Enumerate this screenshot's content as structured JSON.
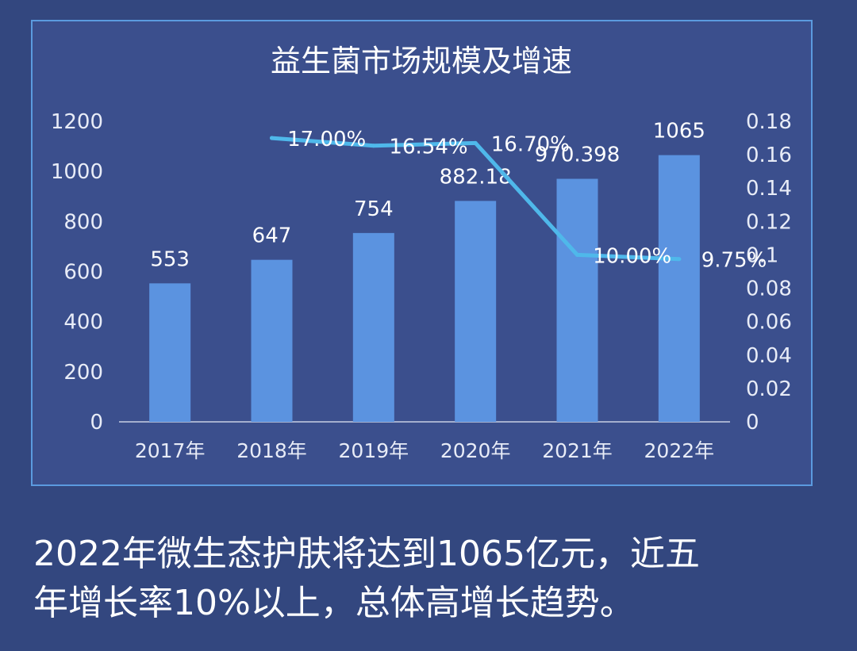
{
  "colors": {
    "background": "#33477f",
    "panel": "#3b4f8d",
    "panel_border": "#5b9bdf",
    "bar": "#5b93e0",
    "line": "#4fb8ea",
    "text": "#ffffff",
    "axis_text": "#e8ecf7",
    "axis_line": "#c8cfe4"
  },
  "chart_data": {
    "type": "bar",
    "title": "益生菌市场规模及增速",
    "categories": [
      "2017年",
      "2018年",
      "2019年",
      "2020年",
      "2021年",
      "2022年"
    ],
    "series": [
      {
        "type": "bar",
        "axis": "left",
        "values": [
          553,
          647,
          754,
          882.18,
          970.398,
          1065
        ],
        "data_labels": [
          "553",
          "647",
          "754",
          "882.18",
          "970.398",
          "1065"
        ]
      },
      {
        "type": "line",
        "axis": "right",
        "values": [
          null,
          0.17,
          0.1654,
          0.167,
          0.1,
          0.0975
        ],
        "data_labels": [
          "",
          "17.00%",
          "16.54%",
          "16.70%",
          "10.00%",
          "9.75%"
        ]
      }
    ],
    "y_left": {
      "ylim": [
        0,
        1200
      ],
      "ticks": [
        "0",
        "200",
        "400",
        "600",
        "800",
        "1000",
        "1200"
      ]
    },
    "y_right": {
      "ylim": [
        0,
        0.18
      ],
      "ticks": [
        "0",
        "0.02",
        "0.04",
        "0.06",
        "0.08",
        "0.1",
        "0.12",
        "0.14",
        "0.16",
        "0.18"
      ]
    },
    "grid": false,
    "legend": "none"
  },
  "caption": {
    "line1": "2022年微生态护肤将达到1065亿元，近五",
    "line2": "年增长率10%以上，总体高增长趋势。"
  }
}
